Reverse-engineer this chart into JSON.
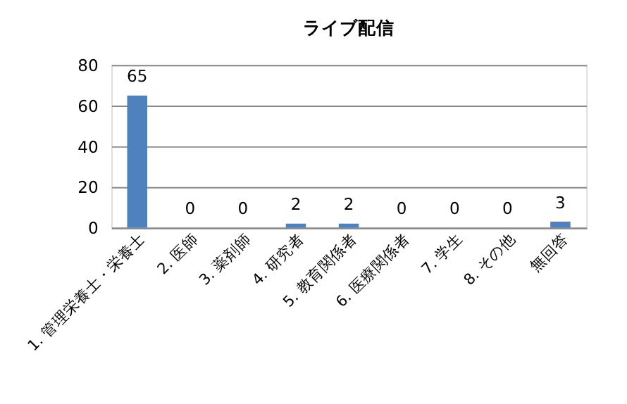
{
  "chart_data": {
    "type": "bar",
    "title": "ライブ配信",
    "categories": [
      "1. 管理栄養士・栄養士",
      "2. 医師",
      "3. 薬剤師",
      "4. 研究者",
      "5. 教育関係者",
      "6. 医療関係者",
      "7. 学生",
      "8. その他",
      "無回答"
    ],
    "values": [
      65,
      0,
      0,
      2,
      2,
      0,
      0,
      0,
      3
    ],
    "color": "#4f81bd",
    "ylim": [
      0,
      80
    ],
    "yticks": [
      0,
      20,
      40,
      60,
      80
    ],
    "grid": "y",
    "data_labels": true
  }
}
